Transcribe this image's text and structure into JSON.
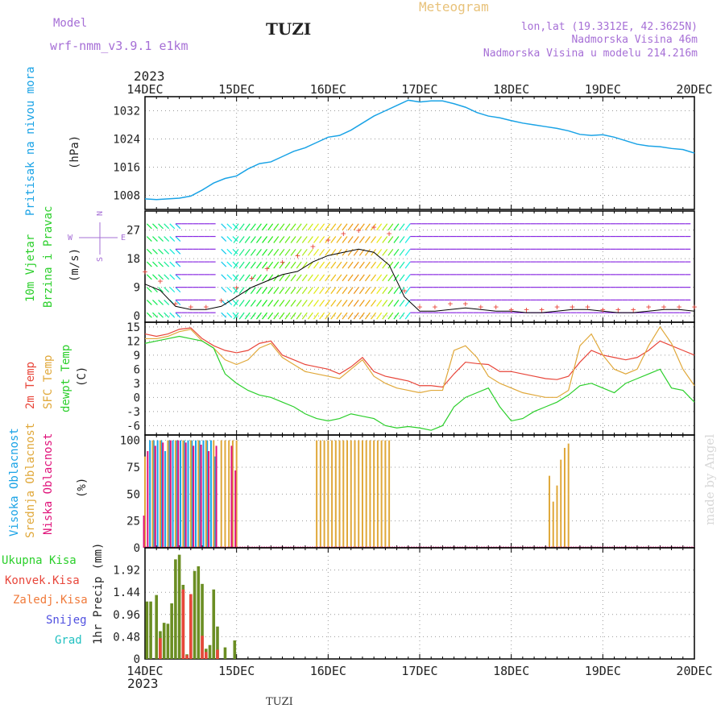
{
  "header": {
    "model_label": "Model",
    "model_name": "wrf-nmm_v3.9.1 e1km",
    "station": "TUZI",
    "meteogram_title": "Meteogram",
    "lonlat": "lon,lat (19.3312E, 42.3625N)",
    "elevation": "Nadmorska Visina 46m",
    "model_elevation": "Nadmorska Visina u modelu 214.216m",
    "footer_station": "TUZI",
    "credit": "made by Angel"
  },
  "time_axis": {
    "year": "2023",
    "labels": [
      "14DEC",
      "15DEC",
      "16DEC",
      "17DEC",
      "18DEC",
      "19DEC",
      "20DEC"
    ],
    "hours_total": 144
  },
  "colors": {
    "pressure": "#1aa3e6",
    "temp2m": "#e8463a",
    "sfc": "#e0a83a",
    "dewpt": "#2bcf2b",
    "high_cloud": "#1aa3e6",
    "mid_cloud": "#e0a83a",
    "low_cloud": "#e0137a",
    "total_rain": "#6b8e23",
    "conv_rain": "#e8463a",
    "freezing": "#f07a3a",
    "snow": "#5050e0",
    "hail": "#20c0c0",
    "wind_arrow": "#8a2be2"
  },
  "chart_data": [
    {
      "type": "line",
      "panel": "pressure",
      "ylabel": "Pritisak na nivou mora",
      "unit": "(hPa)",
      "yticks": [
        1008,
        1016,
        1024,
        1032
      ],
      "ylim": [
        1004,
        1036
      ],
      "series": [
        {
          "values_x_hours": [
            0,
            3,
            6,
            9,
            12,
            15,
            18,
            21,
            24,
            27,
            30,
            33,
            36,
            39,
            42,
            45,
            48,
            51,
            54,
            57,
            60,
            63,
            66,
            69,
            72,
            75,
            78,
            81,
            84,
            87,
            90,
            93,
            96,
            99,
            102,
            105,
            108,
            111,
            114,
            117,
            120,
            123,
            126,
            129,
            132,
            135,
            138,
            141,
            144
          ],
          "values": [
            1007,
            1006.8,
            1007,
            1007.2,
            1007.8,
            1009.5,
            1011.5,
            1012.8,
            1013.5,
            1015.5,
            1017,
            1017.5,
            1019,
            1020.5,
            1021.5,
            1023,
            1024.5,
            1025,
            1026.5,
            1028.5,
            1030.5,
            1032,
            1033.5,
            1035,
            1034.5,
            1034.8,
            1034.8,
            1034,
            1033,
            1031.5,
            1030.5,
            1030,
            1029.2,
            1028.5,
            1028,
            1027.5,
            1027,
            1026.3,
            1025.3,
            1025,
            1025.2,
            1024.5,
            1023.5,
            1022.5,
            1022,
            1021.8,
            1021.3,
            1021,
            1020
          ]
        }
      ]
    },
    {
      "type": "line",
      "panel": "wind",
      "ylabel": "10m Vjetar",
      "ylabel2": "Brzina i Pravac",
      "unit": "(m/s)",
      "compass": [
        "N",
        "S",
        "W",
        "E"
      ],
      "yticks": [
        0,
        9,
        18,
        27
      ],
      "ylim": [
        -2,
        33
      ],
      "x_hours": [
        0,
        4,
        8,
        12,
        16,
        20,
        24,
        28,
        32,
        36,
        40,
        44,
        48,
        52,
        56,
        60,
        64,
        68,
        72,
        76,
        80,
        84,
        88,
        92,
        96,
        100,
        104,
        108,
        112,
        116,
        120,
        124,
        128,
        132,
        136,
        140,
        144
      ],
      "speed_values": [
        10,
        8,
        3,
        2,
        2,
        3,
        6,
        9,
        11,
        13,
        14,
        17,
        19,
        20,
        21,
        20,
        16,
        6,
        1.5,
        1.5,
        2,
        2.5,
        2,
        1.5,
        1.5,
        1,
        1,
        1.5,
        2,
        2,
        1.5,
        1,
        1,
        1.5,
        2,
        2,
        1.5
      ],
      "gust_values": [
        14,
        11,
        4,
        3,
        3,
        5,
        9,
        12,
        15,
        17,
        19,
        22,
        24,
        26,
        27,
        28,
        26,
        8,
        3,
        3,
        4,
        4,
        3,
        3,
        2,
        2,
        2,
        3,
        3,
        3,
        2,
        2,
        2,
        3,
        3,
        3,
        3
      ]
    },
    {
      "type": "line",
      "panel": "temperature",
      "ylabel": "2m Temp",
      "ylabel2": "SFC Temp",
      "ylabel3": "dewpt Temp",
      "unit": "(C)",
      "yticks": [
        -6,
        -3,
        0,
        3,
        6,
        9,
        12,
        15
      ],
      "ylim": [
        -8,
        16
      ],
      "x_hours": [
        0,
        3,
        6,
        9,
        12,
        15,
        18,
        21,
        24,
        27,
        30,
        33,
        36,
        39,
        42,
        45,
        48,
        51,
        54,
        57,
        60,
        63,
        66,
        69,
        72,
        75,
        78,
        81,
        84,
        87,
        90,
        93,
        96,
        99,
        102,
        105,
        108,
        111,
        114,
        117,
        120,
        123,
        126,
        129,
        132,
        135,
        138,
        141,
        144
      ],
      "series": [
        {
          "name": "2m Temp",
          "values": [
            13.5,
            13,
            13.5,
            14.5,
            14.8,
            12.5,
            11,
            10,
            9.5,
            10,
            11.5,
            12,
            9,
            8,
            7,
            6.5,
            6,
            5,
            6.5,
            8.5,
            5.5,
            4.5,
            4,
            3.5,
            2.5,
            2.5,
            2.2,
            5,
            7.5,
            7.2,
            7,
            5.5,
            5.5,
            5,
            4.5,
            4,
            3.8,
            4.5,
            7.5,
            10,
            9,
            8.5,
            8,
            8.5,
            10,
            12,
            11,
            10,
            9
          ]
        },
        {
          "name": "SFC Temp",
          "values": [
            12.5,
            12.5,
            13,
            14,
            14.5,
            12,
            10.5,
            8,
            7,
            8,
            10.5,
            11.5,
            8.5,
            7,
            5.5,
            5,
            4.5,
            4,
            6,
            8,
            4.5,
            3,
            2,
            1.5,
            1,
            1.5,
            1.5,
            10,
            11,
            8.5,
            4.5,
            3,
            2,
            1,
            0.5,
            0,
            0,
            1.5,
            11,
            13.5,
            9,
            6,
            5,
            6,
            11,
            15,
            11.5,
            6,
            2.5
          ]
        },
        {
          "name": "dewpt Temp",
          "values": [
            11.5,
            12,
            12.5,
            13,
            12.5,
            12,
            10.5,
            5,
            3,
            1.5,
            0.5,
            0,
            -1,
            -2,
            -3.5,
            -4.5,
            -5,
            -4.5,
            -3.5,
            -4,
            -4.5,
            -6,
            -6.5,
            -6.2,
            -6.5,
            -7,
            -6,
            -2,
            0,
            1,
            2,
            -2,
            -5,
            -4.5,
            -3,
            -2,
            -1,
            0.5,
            2.5,
            3,
            2,
            1,
            3,
            4,
            5,
            6,
            2,
            1.5,
            -1
          ]
        }
      ]
    },
    {
      "type": "bar",
      "panel": "cloud",
      "ylabel": "Visoka Oblacnost",
      "ylabel2": "Srednja Oblacnost",
      "ylabel3": "Niska Oblacnost",
      "unit": "(%)",
      "yticks": [
        0,
        25,
        50,
        75,
        100
      ],
      "ylim": [
        0,
        105
      ],
      "series": [
        {
          "name": "Visoka Oblacnost",
          "x_hours": [
            1,
            2,
            3,
            4,
            5,
            6,
            7,
            8,
            9,
            10,
            11,
            12,
            13,
            14,
            15,
            16,
            17,
            18
          ],
          "values": [
            100,
            100,
            100,
            100,
            90,
            100,
            100,
            100,
            100,
            100,
            100,
            100,
            100,
            100,
            100,
            100,
            100,
            85
          ]
        },
        {
          "name": "Srednja Oblacnost",
          "x_hours": [
            0,
            2,
            4,
            6,
            8,
            10,
            12,
            14,
            16,
            18,
            20,
            21,
            22,
            23,
            24,
            45,
            46,
            47,
            48,
            49,
            50,
            51,
            52,
            53,
            54,
            55,
            56,
            57,
            58,
            59,
            60,
            61,
            62,
            63,
            64,
            106,
            107,
            108,
            109,
            110,
            111
          ],
          "values": [
            85,
            100,
            100,
            100,
            100,
            100,
            100,
            100,
            100,
            100,
            100,
            100,
            100,
            100,
            100,
            100,
            100,
            100,
            100,
            100,
            100,
            100,
            100,
            100,
            100,
            100,
            100,
            100,
            100,
            100,
            100,
            100,
            100,
            100,
            100,
            67,
            43,
            58,
            82,
            93,
            97
          ]
        },
        {
          "name": "Niska Oblacnost",
          "x_hours": [
            0,
            1,
            3,
            5,
            7,
            9,
            11,
            13,
            15,
            17,
            19,
            23,
            24
          ],
          "values": [
            30,
            90,
            95,
            98,
            100,
            100,
            98,
            95,
            96,
            90,
            95,
            95,
            72
          ]
        }
      ]
    },
    {
      "type": "bar",
      "panel": "precipitation",
      "ylabel": "1hr Precip",
      "unit": "(mm)",
      "legend": [
        "Ukupna Kisa",
        "Konvek.Kisa",
        "Zaledj.Kisa",
        "Snijeg",
        "Grad"
      ],
      "yticks": [
        0,
        0.48,
        0.96,
        1.44,
        1.92
      ],
      "ylim": [
        0,
        2.4
      ],
      "series": [
        {
          "name": "Ukupna Kisa",
          "x_hours": [
            0.5,
            1.5,
            3,
            4,
            5,
            6,
            7,
            8,
            9,
            10,
            11,
            12,
            13,
            14,
            15,
            16,
            17,
            18,
            19,
            21,
            23.5
          ],
          "values": [
            1.24,
            1.24,
            1.38,
            0.6,
            0.78,
            0.76,
            1.2,
            2.15,
            2.25,
            1.6,
            0.1,
            1.26,
            1.9,
            2.0,
            1.62,
            0.22,
            0.3,
            1.5,
            0.7,
            0.25,
            0.4
          ]
        },
        {
          "name": "Konvek.Kisa",
          "x_hours": [
            4,
            10,
            11,
            12,
            15,
            16,
            19
          ],
          "values": [
            0.45,
            1.5,
            0.08,
            1.4,
            0.5,
            0.15,
            0.2
          ]
        }
      ]
    }
  ]
}
